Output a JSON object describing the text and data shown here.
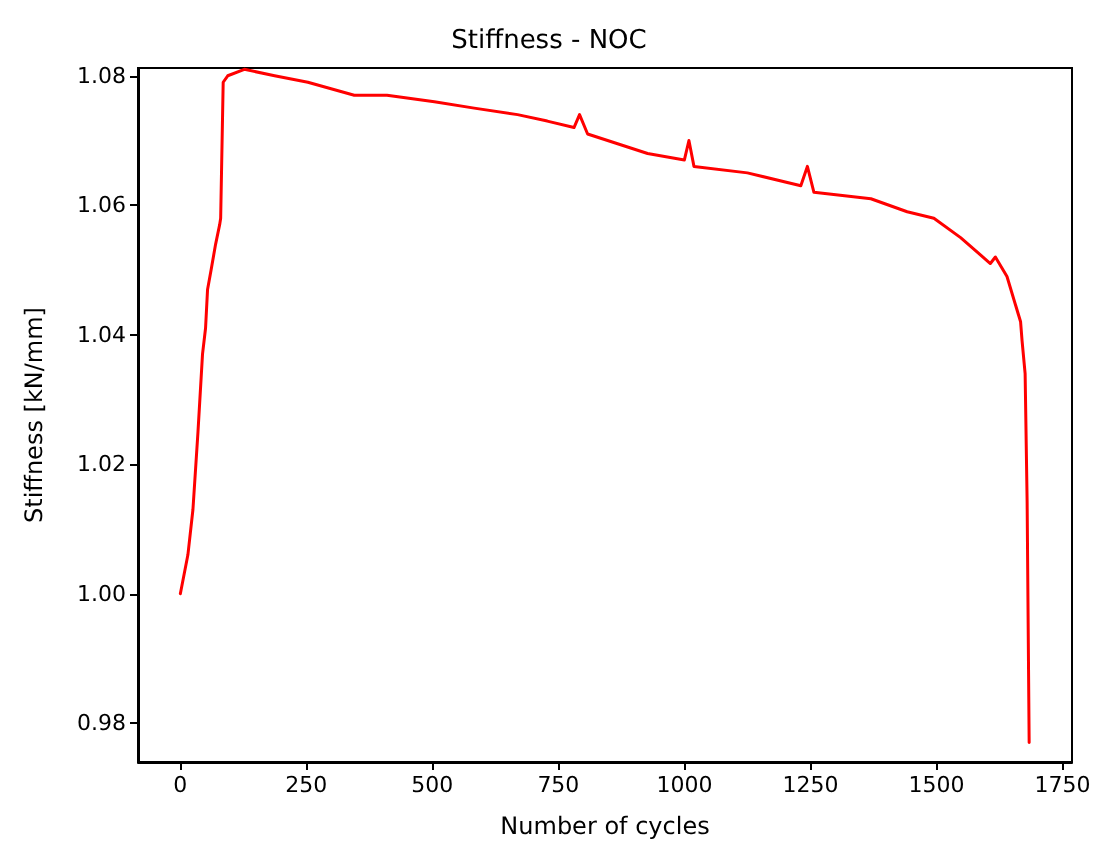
{
  "chart_data": {
    "type": "line",
    "title": "Stiffness - NOC",
    "xlabel": "Number of cycles",
    "ylabel": "Stiffness [kN/mm]",
    "x": [
      0,
      15,
      25,
      35,
      44,
      50,
      54,
      61,
      70,
      78,
      80,
      85,
      94,
      127,
      187,
      253,
      345,
      410,
      504,
      583,
      669,
      728,
      781,
      792,
      808,
      927,
      1000,
      1009,
      1019,
      1125,
      1231,
      1244,
      1257,
      1370,
      1442,
      1495,
      1548,
      1607,
      1617,
      1640,
      1667,
      1670,
      1676,
      1680,
      1684
    ],
    "series": [
      {
        "color": "#ff0000",
        "values": [
          1.0,
          1.006,
          1.013,
          1.025,
          1.037,
          1.041,
          1.047,
          1.05,
          1.054,
          1.057,
          1.058,
          1.079,
          1.08,
          1.081,
          1.08,
          1.079,
          1.077,
          1.077,
          1.076,
          1.075,
          1.074,
          1.073,
          1.072,
          1.074,
          1.071,
          1.068,
          1.067,
          1.07,
          1.066,
          1.065,
          1.063,
          1.066,
          1.062,
          1.061,
          1.059,
          1.058,
          1.055,
          1.051,
          1.052,
          1.049,
          1.042,
          1.039,
          1.034,
          1.014,
          0.977
        ]
      }
    ],
    "xlim": [
      -84,
      1769
    ],
    "ylim": [
      0.974,
      1.0812
    ],
    "xticks": [
      0,
      250,
      500,
      750,
      1000,
      1250,
      1500,
      1750
    ],
    "yticks": [
      0.98,
      {
        "value": 1,
        "label": "1.00"
      },
      1.02,
      1.04,
      1.06,
      1.08
    ]
  }
}
